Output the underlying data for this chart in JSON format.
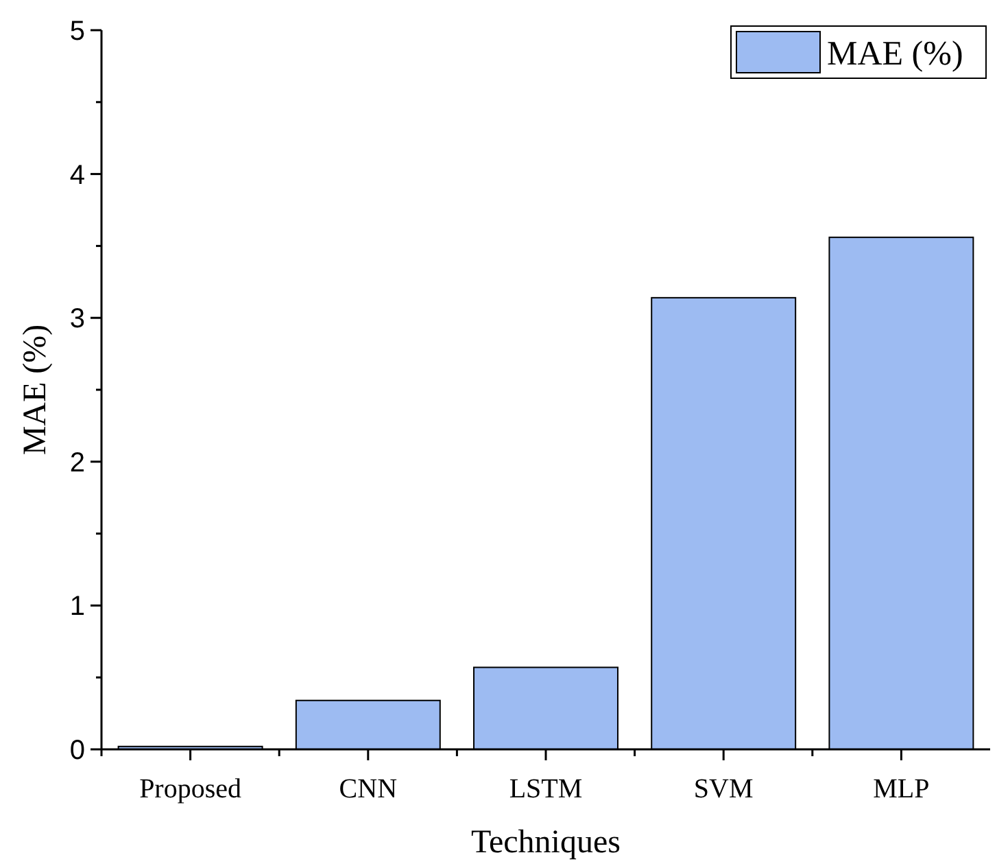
{
  "chart_data": {
    "type": "bar",
    "xlabel": "Techniques",
    "ylabel": "MAE (%)",
    "categories": [
      "Proposed",
      "CNN",
      "LSTM",
      "SVM",
      "MLP"
    ],
    "series": [
      {
        "name": "MAE (%)",
        "color": "#9dbbf2",
        "values": [
          0.02,
          0.34,
          0.57,
          3.14,
          3.56
        ]
      }
    ],
    "ylim": [
      0,
      5
    ],
    "yticks": [
      0,
      {
        "value": 0.5,
        "label": null
      },
      1,
      {
        "value": 1.5,
        "label": null
      },
      2,
      {
        "value": 2.5,
        "label": null
      },
      3,
      {
        "value": 3.5,
        "label": null
      },
      4,
      {
        "value": 4.5,
        "label": null
      },
      5
    ],
    "grid": false,
    "legend": "top right"
  }
}
